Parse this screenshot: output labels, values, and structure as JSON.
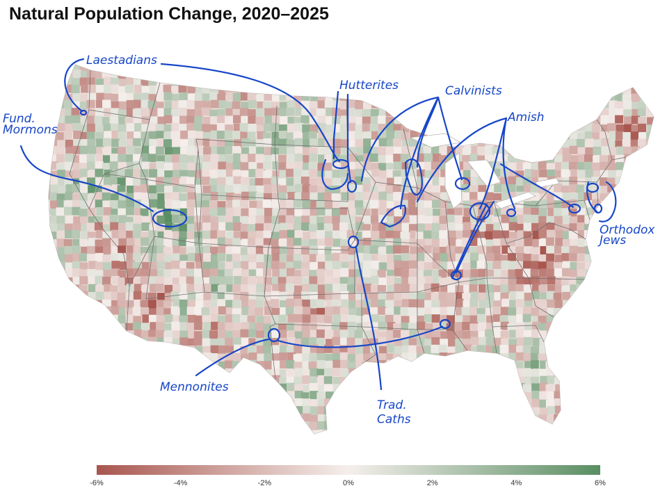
{
  "title": "Natural Population Change, 2020–2025",
  "colors": {
    "negative": "#a8564e",
    "neutral": "#f5efec",
    "positive": "#5a8e63",
    "annotation": "#1646c8",
    "state_border": "#6f6f6f"
  },
  "legend": {
    "ticks": [
      "-6%",
      "-4%",
      "-2%",
      "0%",
      "2%",
      "4%",
      "6%"
    ]
  },
  "annotations": [
    {
      "id": "laestadians",
      "label": "Laestadians"
    },
    {
      "id": "hutterites",
      "label": "Hutterites"
    },
    {
      "id": "calvinists",
      "label": "Calvinists"
    },
    {
      "id": "amish",
      "label": "Amish"
    },
    {
      "id": "fund-mormons",
      "label": "Fund.\nMormons"
    },
    {
      "id": "orthodox-jews",
      "label": "Orthodox\nJews"
    },
    {
      "id": "mennonites",
      "label": "Mennonites"
    },
    {
      "id": "trad-caths",
      "label": "Trad.\nCaths"
    }
  ]
}
